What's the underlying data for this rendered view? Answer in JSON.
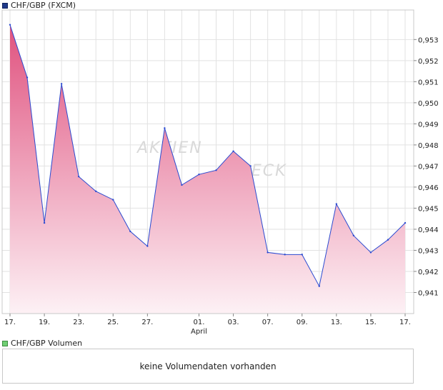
{
  "legend_main": {
    "label": "CHF/GBP (FXCM)",
    "color": "#1f3a8a"
  },
  "legend_volume": {
    "label": "CHF/GBP Volumen",
    "color": "#6fcf73"
  },
  "volume_message": "keine Volumendaten vorhanden",
  "watermark": {
    "line1": "AKTIEN",
    "line2": "CHECK"
  },
  "chart_data": {
    "type": "area",
    "series": [
      {
        "name": "CHF/GBP (FXCM)",
        "line_color": "#2b4bd1",
        "fill_top": "#e0527f",
        "fill_bottom": "#fdf1f5",
        "x": [
          0,
          1,
          2,
          3,
          4,
          5,
          6,
          7,
          8,
          9,
          10,
          11,
          12,
          13,
          14,
          15,
          16,
          17,
          18,
          19,
          20,
          21,
          22,
          23
        ],
        "values": [
          0.9537,
          0.9512,
          0.9443,
          0.9509,
          0.9465,
          0.9458,
          0.9454,
          0.9439,
          0.9432,
          0.9488,
          0.9461,
          0.9466,
          0.9468,
          0.9477,
          0.947,
          0.9429,
          0.9428,
          0.9428,
          0.9413,
          0.9452,
          0.9437,
          0.9429,
          0.9435,
          0.9443
        ]
      }
    ],
    "x_ticks": [
      {
        "pos": 0,
        "label": "17."
      },
      {
        "pos": 2,
        "label": "19."
      },
      {
        "pos": 4,
        "label": "23."
      },
      {
        "pos": 6,
        "label": "25."
      },
      {
        "pos": 8,
        "label": "27."
      },
      {
        "pos": 11,
        "label": "01.",
        "sublabel": "April"
      },
      {
        "pos": 13,
        "label": "03."
      },
      {
        "pos": 15,
        "label": "07."
      },
      {
        "pos": 17,
        "label": "09."
      },
      {
        "pos": 19,
        "label": "13."
      },
      {
        "pos": 21,
        "label": "15."
      },
      {
        "pos": 23,
        "label": "17."
      }
    ],
    "y_ticks": [
      "0,953",
      "0,952",
      "0,951",
      "0,950",
      "0,949",
      "0,948",
      "0,947",
      "0,946",
      "0,945",
      "0,944",
      "0,943",
      "0,942",
      "0,941"
    ],
    "ylim": [
      0.94,
      0.9544
    ],
    "grid": true,
    "legend": "top-left"
  }
}
